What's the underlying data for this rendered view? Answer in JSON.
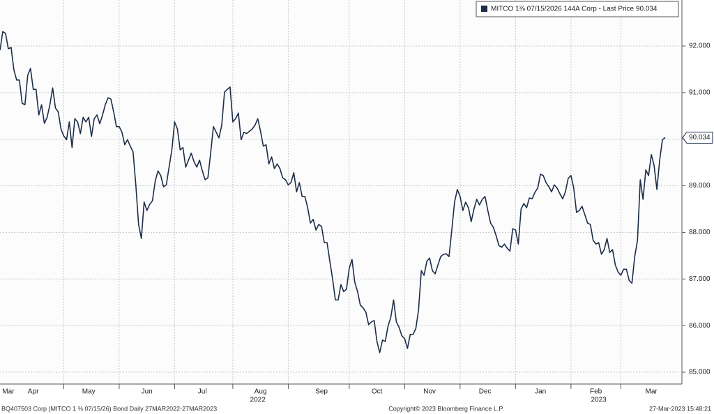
{
  "chart_data": {
    "type": "line",
    "series": [
      {
        "name": "MITCO 1⅜  07/15/2026 144A Corp - Last Price 90.034",
        "color": "#1d2d48",
        "values": [
          91.91,
          92.31,
          92.27,
          91.94,
          91.97,
          91.49,
          91.27,
          91.27,
          90.77,
          90.74,
          91.37,
          91.52,
          91.07,
          91.07,
          90.52,
          90.74,
          90.34,
          90.47,
          90.74,
          91.1,
          90.67,
          90.59,
          90.22,
          90.07,
          89.99,
          90.37,
          89.82,
          90.44,
          90.37,
          90.12,
          90.47,
          90.37,
          90.47,
          90.06,
          90.44,
          90.52,
          90.33,
          90.52,
          90.74,
          90.89,
          90.86,
          90.59,
          90.27,
          90.27,
          90.15,
          89.88,
          89.99,
          89.85,
          89.73,
          89.02,
          88.17,
          87.87,
          88.65,
          88.47,
          88.6,
          88.68,
          89.1,
          89.32,
          89.22,
          88.98,
          89.02,
          89.4,
          89.77,
          90.37,
          90.22,
          89.77,
          89.82,
          89.4,
          89.55,
          89.7,
          89.52,
          89.4,
          89.55,
          89.32,
          89.13,
          89.17,
          89.7,
          90.27,
          90.15,
          90.03,
          90.3,
          91.01,
          91.07,
          91.12,
          90.37,
          90.44,
          90.56,
          89.99,
          90.15,
          90.12,
          90.17,
          90.22,
          90.3,
          90.44,
          90.17,
          89.85,
          89.88,
          89.47,
          89.62,
          89.37,
          89.47,
          89.37,
          89.17,
          89.13,
          89.02,
          89.07,
          89.28,
          88.87,
          89.07,
          88.77,
          88.77,
          88.53,
          88.2,
          88.28,
          88.05,
          88.17,
          88.13,
          87.78,
          87.78,
          87.38,
          87.0,
          86.55,
          86.55,
          86.88,
          86.73,
          86.78,
          87.23,
          87.42,
          86.93,
          86.73,
          86.44,
          86.38,
          86.29,
          86.02,
          86.08,
          86.11,
          85.66,
          85.42,
          85.69,
          85.66,
          85.99,
          86.18,
          86.55,
          86.08,
          85.96,
          85.78,
          85.72,
          85.51,
          85.81,
          85.81,
          85.93,
          86.33,
          87.18,
          87.08,
          87.38,
          87.45,
          87.18,
          87.11,
          87.3,
          87.48,
          87.53,
          87.54,
          87.48,
          88.05,
          88.65,
          88.92,
          88.77,
          88.47,
          88.65,
          88.53,
          88.23,
          88.5,
          88.71,
          88.59,
          88.71,
          88.77,
          88.47,
          88.2,
          88.11,
          87.93,
          87.72,
          87.68,
          87.75,
          87.66,
          87.6,
          88.08,
          88.05,
          87.75,
          88.5,
          88.62,
          88.53,
          88.74,
          88.72,
          88.86,
          88.95,
          89.25,
          89.22,
          89.07,
          88.98,
          88.87,
          89.02,
          88.95,
          88.83,
          88.72,
          88.87,
          89.16,
          89.22,
          88.95,
          88.43,
          88.47,
          88.56,
          88.38,
          88.2,
          88.17,
          87.83,
          87.75,
          87.78,
          87.53,
          87.63,
          87.87,
          87.57,
          87.63,
          87.3,
          87.15,
          87.08,
          87.21,
          87.21,
          86.97,
          86.91,
          87.48,
          87.83,
          89.13,
          88.71,
          89.34,
          89.22,
          89.67,
          89.43,
          88.92,
          89.55,
          89.99,
          90.034
        ]
      }
    ],
    "xlim": [
      0,
      241
    ],
    "xticks": [
      23,
      43,
      63,
      84,
      104,
      126,
      146,
      166,
      186,
      206,
      224
    ],
    "month_labels": [
      {
        "value": 3,
        "label": "Mar"
      },
      {
        "value": 12,
        "label": "Apr"
      },
      {
        "value": 32,
        "label": "May"
      },
      {
        "value": 53,
        "label": "Jun"
      },
      {
        "value": 73,
        "label": "Jul"
      },
      {
        "value": 94,
        "label": "Aug"
      },
      {
        "value": 116,
        "label": "Sep"
      },
      {
        "value": 136,
        "label": "Oct"
      },
      {
        "value": 155,
        "label": "Nov"
      },
      {
        "value": 175,
        "label": "Dec"
      },
      {
        "value": 195,
        "label": "Jan"
      },
      {
        "value": 215,
        "label": "Feb"
      },
      {
        "value": 235,
        "label": "Mar"
      }
    ],
    "year_labels": [
      {
        "value": 93,
        "label": "2022"
      },
      {
        "value": 216,
        "label": "2023"
      }
    ],
    "ylim": [
      84.746,
      92.987
    ],
    "yticks": [
      {
        "value": 85,
        "label": "85.000"
      },
      {
        "value": 86,
        "label": "86.000"
      },
      {
        "value": 87,
        "label": "87.000"
      },
      {
        "value": 88,
        "label": "88.000"
      },
      {
        "value": 89,
        "label": "89.000"
      },
      {
        "value": 90,
        "label": "90.000"
      },
      {
        "value": 91,
        "label": "91.000"
      },
      {
        "value": 92,
        "label": "92.000"
      }
    ],
    "grid": true,
    "footer_left": "BQ407503 Corp (MITCO 1 ⅜  07/15/26) Bond  Daily 27MAR2022-27MAR2023",
    "footer_center": "Copyright© 2023 Bloomberg Finance L.P.",
    "footer_right": "27-Mar-2023 15:48:21"
  }
}
